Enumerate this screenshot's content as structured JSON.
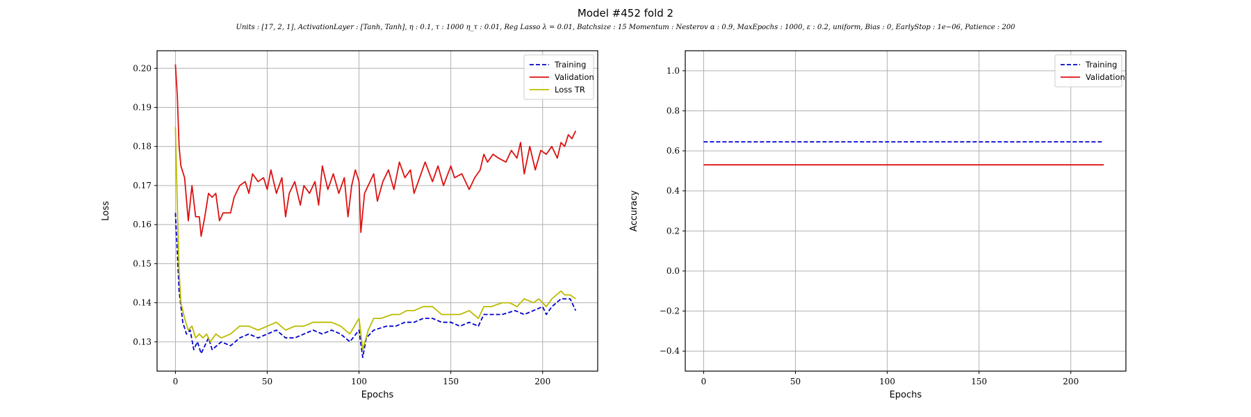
{
  "figure": {
    "title": "Model #452 fold 2",
    "subtitle": "Units : [17, 2, 1], ActivationLayer : [Tanh, Tanh], η : 0.1, τ : 1000 η_τ : 0.01, Reg Lasso λ = 0.01, Batchsize : 15 Momentum : Nesterov α : 0.9, MaxEpochs : 1000, ε : 0.2, uniform, Bias : 0, EarlyStop : 1e−06, Patience : 200"
  },
  "chart_data": [
    {
      "type": "line",
      "xlabel": "Epochs",
      "ylabel": "Loss",
      "xlim": [
        -10,
        230
      ],
      "ylim": [
        0.1225,
        0.2045
      ],
      "xticks": [
        0,
        50,
        100,
        150,
        200
      ],
      "yticks": [
        0.13,
        0.14,
        0.15,
        0.16,
        0.17,
        0.18,
        0.19,
        0.2
      ],
      "ytick_labels": [
        "0.13",
        "0.14",
        "0.15",
        "0.16",
        "0.17",
        "0.18",
        "0.19",
        "0.20"
      ],
      "grid": true,
      "legend_position": "top-right",
      "series": [
        {
          "name": "Training",
          "color": "#0000cc",
          "style": "dashed",
          "points": [
            [
              0,
              0.163
            ],
            [
              2,
              0.143
            ],
            [
              4,
              0.135
            ],
            [
              6,
              0.132
            ],
            [
              8,
              0.133
            ],
            [
              10,
              0.128
            ],
            [
              12,
              0.13
            ],
            [
              14,
              0.127
            ],
            [
              16,
              0.129
            ],
            [
              18,
              0.131
            ],
            [
              20,
              0.128
            ],
            [
              25,
              0.13
            ],
            [
              30,
              0.129
            ],
            [
              35,
              0.131
            ],
            [
              40,
              0.132
            ],
            [
              45,
              0.131
            ],
            [
              50,
              0.132
            ],
            [
              55,
              0.133
            ],
            [
              60,
              0.131
            ],
            [
              65,
              0.131
            ],
            [
              70,
              0.132
            ],
            [
              75,
              0.133
            ],
            [
              80,
              0.132
            ],
            [
              85,
              0.133
            ],
            [
              90,
              0.132
            ],
            [
              95,
              0.13
            ],
            [
              100,
              0.133
            ],
            [
              102,
              0.126
            ],
            [
              104,
              0.131
            ],
            [
              108,
              0.133
            ],
            [
              115,
              0.134
            ],
            [
              120,
              0.134
            ],
            [
              125,
              0.135
            ],
            [
              130,
              0.135
            ],
            [
              135,
              0.136
            ],
            [
              140,
              0.136
            ],
            [
              145,
              0.135
            ],
            [
              150,
              0.135
            ],
            [
              155,
              0.134
            ],
            [
              160,
              0.135
            ],
            [
              165,
              0.134
            ],
            [
              168,
              0.137
            ],
            [
              172,
              0.137
            ],
            [
              178,
              0.137
            ],
            [
              185,
              0.138
            ],
            [
              190,
              0.137
            ],
            [
              195,
              0.138
            ],
            [
              200,
              0.139
            ],
            [
              202,
              0.137
            ],
            [
              205,
              0.139
            ],
            [
              210,
              0.141
            ],
            [
              215,
              0.141
            ],
            [
              218,
              0.138
            ]
          ]
        },
        {
          "name": "Validation",
          "color": "#dd1111",
          "style": "solid",
          "points": [
            [
              0,
              0.201
            ],
            [
              1,
              0.193
            ],
            [
              2,
              0.18
            ],
            [
              3,
              0.175
            ],
            [
              5,
              0.172
            ],
            [
              7,
              0.161
            ],
            [
              9,
              0.17
            ],
            [
              11,
              0.162
            ],
            [
              13,
              0.162
            ],
            [
              14,
              0.157
            ],
            [
              16,
              0.162
            ],
            [
              18,
              0.168
            ],
            [
              20,
              0.167
            ],
            [
              22,
              0.168
            ],
            [
              24,
              0.161
            ],
            [
              26,
              0.163
            ],
            [
              30,
              0.163
            ],
            [
              32,
              0.167
            ],
            [
              35,
              0.17
            ],
            [
              38,
              0.171
            ],
            [
              40,
              0.168
            ],
            [
              42,
              0.173
            ],
            [
              45,
              0.171
            ],
            [
              48,
              0.172
            ],
            [
              50,
              0.169
            ],
            [
              52,
              0.174
            ],
            [
              55,
              0.168
            ],
            [
              58,
              0.172
            ],
            [
              60,
              0.162
            ],
            [
              62,
              0.168
            ],
            [
              65,
              0.171
            ],
            [
              68,
              0.165
            ],
            [
              70,
              0.17
            ],
            [
              73,
              0.168
            ],
            [
              76,
              0.171
            ],
            [
              78,
              0.165
            ],
            [
              80,
              0.175
            ],
            [
              83,
              0.169
            ],
            [
              86,
              0.173
            ],
            [
              89,
              0.168
            ],
            [
              92,
              0.172
            ],
            [
              94,
              0.162
            ],
            [
              96,
              0.17
            ],
            [
              98,
              0.174
            ],
            [
              100,
              0.171
            ],
            [
              101,
              0.158
            ],
            [
              103,
              0.168
            ],
            [
              105,
              0.17
            ],
            [
              108,
              0.173
            ],
            [
              110,
              0.166
            ],
            [
              113,
              0.171
            ],
            [
              116,
              0.174
            ],
            [
              119,
              0.169
            ],
            [
              122,
              0.176
            ],
            [
              125,
              0.172
            ],
            [
              128,
              0.174
            ],
            [
              130,
              0.168
            ],
            [
              133,
              0.172
            ],
            [
              136,
              0.176
            ],
            [
              140,
              0.171
            ],
            [
              143,
              0.175
            ],
            [
              146,
              0.17
            ],
            [
              150,
              0.175
            ],
            [
              152,
              0.172
            ],
            [
              156,
              0.173
            ],
            [
              160,
              0.169
            ],
            [
              163,
              0.172
            ],
            [
              166,
              0.174
            ],
            [
              168,
              0.178
            ],
            [
              170,
              0.176
            ],
            [
              173,
              0.178
            ],
            [
              176,
              0.177
            ],
            [
              180,
              0.176
            ],
            [
              183,
              0.179
            ],
            [
              186,
              0.177
            ],
            [
              188,
              0.181
            ],
            [
              190,
              0.173
            ],
            [
              193,
              0.18
            ],
            [
              196,
              0.174
            ],
            [
              199,
              0.179
            ],
            [
              202,
              0.178
            ],
            [
              205,
              0.18
            ],
            [
              208,
              0.177
            ],
            [
              210,
              0.181
            ],
            [
              212,
              0.18
            ],
            [
              214,
              0.183
            ],
            [
              216,
              0.182
            ],
            [
              218,
              0.184
            ]
          ]
        },
        {
          "name": "Loss TR",
          "color": "#bbbb00",
          "style": "solid",
          "points": [
            [
              0,
              0.185
            ],
            [
              1,
              0.165
            ],
            [
              2,
              0.148
            ],
            [
              3,
              0.14
            ],
            [
              5,
              0.136
            ],
            [
              7,
              0.133
            ],
            [
              9,
              0.134
            ],
            [
              11,
              0.131
            ],
            [
              13,
              0.132
            ],
            [
              15,
              0.131
            ],
            [
              17,
              0.132
            ],
            [
              19,
              0.13
            ],
            [
              22,
              0.132
            ],
            [
              25,
              0.131
            ],
            [
              30,
              0.132
            ],
            [
              35,
              0.134
            ],
            [
              40,
              0.134
            ],
            [
              45,
              0.133
            ],
            [
              50,
              0.134
            ],
            [
              55,
              0.135
            ],
            [
              60,
              0.133
            ],
            [
              65,
              0.134
            ],
            [
              70,
              0.134
            ],
            [
              75,
              0.135
            ],
            [
              80,
              0.135
            ],
            [
              85,
              0.135
            ],
            [
              90,
              0.134
            ],
            [
              95,
              0.132
            ],
            [
              100,
              0.136
            ],
            [
              102,
              0.128
            ],
            [
              105,
              0.133
            ],
            [
              108,
              0.136
            ],
            [
              112,
              0.136
            ],
            [
              118,
              0.137
            ],
            [
              122,
              0.137
            ],
            [
              126,
              0.138
            ],
            [
              130,
              0.138
            ],
            [
              135,
              0.139
            ],
            [
              140,
              0.139
            ],
            [
              145,
              0.137
            ],
            [
              150,
              0.137
            ],
            [
              155,
              0.137
            ],
            [
              160,
              0.138
            ],
            [
              165,
              0.136
            ],
            [
              168,
              0.139
            ],
            [
              172,
              0.139
            ],
            [
              178,
              0.14
            ],
            [
              182,
              0.14
            ],
            [
              186,
              0.139
            ],
            [
              190,
              0.141
            ],
            [
              195,
              0.14
            ],
            [
              198,
              0.141
            ],
            [
              200,
              0.14
            ],
            [
              202,
              0.139
            ],
            [
              205,
              0.141
            ],
            [
              210,
              0.143
            ],
            [
              212,
              0.142
            ],
            [
              215,
              0.142
            ],
            [
              218,
              0.141
            ]
          ]
        }
      ]
    },
    {
      "type": "line",
      "xlabel": "Epochs",
      "ylabel": "Accuracy",
      "xlim": [
        -10,
        230
      ],
      "ylim": [
        -0.5,
        1.1
      ],
      "xticks": [
        0,
        50,
        100,
        150,
        200
      ],
      "yticks": [
        -0.4,
        -0.2,
        0.0,
        0.2,
        0.4,
        0.6,
        0.8,
        1.0
      ],
      "ytick_labels": [
        "−0.4",
        "−0.2",
        "0.0",
        "0.2",
        "0.4",
        "0.6",
        "0.8",
        "1.0"
      ],
      "grid": true,
      "legend_position": "top-right",
      "series": [
        {
          "name": "Training",
          "color": "#0000cc",
          "style": "dashed",
          "points": [
            [
              0,
              0.645
            ],
            [
              218,
              0.645
            ]
          ]
        },
        {
          "name": "Validation",
          "color": "#dd1111",
          "style": "solid",
          "points": [
            [
              0,
              0.53
            ],
            [
              218,
              0.53
            ]
          ]
        }
      ]
    }
  ]
}
